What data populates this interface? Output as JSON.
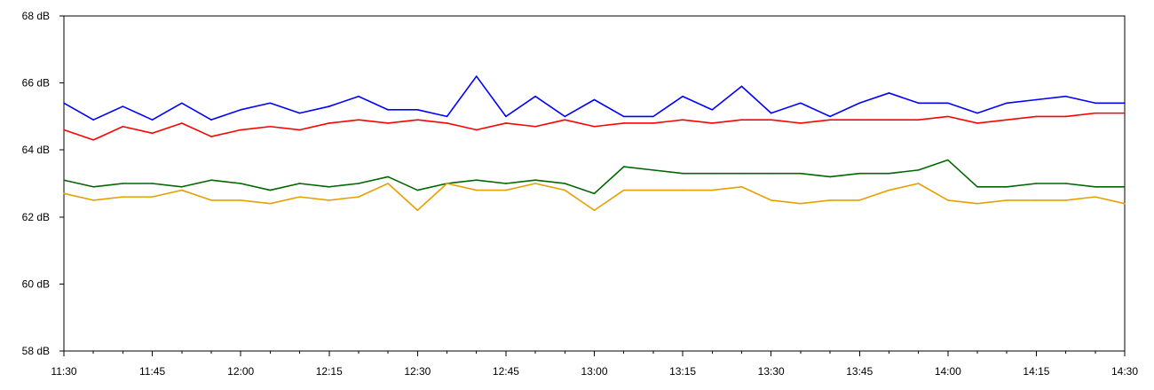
{
  "chart_data": {
    "type": "line",
    "title": "",
    "xlabel": "",
    "ylabel": "",
    "y_unit": "dB",
    "xlim": [
      "11:30",
      "14:30"
    ],
    "ylim": [
      58,
      68
    ],
    "grid": false,
    "legend": "none",
    "x_ticks": [
      "11:30",
      "11:45",
      "12:00",
      "12:15",
      "12:30",
      "12:45",
      "13:00",
      "13:15",
      "13:30",
      "13:45",
      "14:00",
      "14:15",
      "14:30"
    ],
    "y_ticks": [
      {
        "value": 58,
        "label": "58 dB"
      },
      {
        "value": 60,
        "label": "60 dB"
      },
      {
        "value": 62,
        "label": "62 dB"
      },
      {
        "value": 64,
        "label": "64 dB"
      },
      {
        "value": 66,
        "label": "66 dB"
      },
      {
        "value": 68,
        "label": "68 dB"
      }
    ],
    "x": [
      "11:30",
      "11:35",
      "11:40",
      "11:45",
      "11:50",
      "11:55",
      "12:00",
      "12:05",
      "12:10",
      "12:15",
      "12:20",
      "12:25",
      "12:30",
      "12:35",
      "12:40",
      "12:45",
      "12:50",
      "12:55",
      "13:00",
      "13:05",
      "13:10",
      "13:15",
      "13:20",
      "13:25",
      "13:30",
      "13:35",
      "13:40",
      "13:45",
      "13:50",
      "13:55",
      "14:00",
      "14:05",
      "14:10",
      "14:15",
      "14:20",
      "14:25",
      "14:30"
    ],
    "series": [
      {
        "color": "#0000ff",
        "values": [
          65.4,
          64.9,
          65.3,
          64.9,
          65.4,
          64.9,
          65.2,
          65.4,
          65.1,
          65.3,
          65.6,
          65.2,
          65.2,
          65.0,
          66.2,
          65.0,
          65.6,
          65.0,
          65.5,
          65.0,
          65.0,
          65.6,
          65.2,
          65.9,
          65.1,
          65.4,
          65.0,
          65.4,
          65.7,
          65.4,
          65.4,
          65.1,
          65.4,
          65.5,
          65.6,
          65.4,
          65.4
        ]
      },
      {
        "color": "#ff0000",
        "values": [
          64.6,
          64.3,
          64.7,
          64.5,
          64.8,
          64.4,
          64.6,
          64.7,
          64.6,
          64.8,
          64.9,
          64.8,
          64.9,
          64.8,
          64.6,
          64.8,
          64.7,
          64.9,
          64.7,
          64.8,
          64.8,
          64.9,
          64.8,
          64.9,
          64.9,
          64.8,
          64.9,
          64.9,
          64.9,
          64.9,
          65.0,
          64.8,
          64.9,
          65.0,
          65.0,
          65.1,
          65.1
        ]
      },
      {
        "color": "#006600",
        "values": [
          63.1,
          62.9,
          63.0,
          63.0,
          62.9,
          63.1,
          63.0,
          62.8,
          63.0,
          62.9,
          63.0,
          63.2,
          62.8,
          63.0,
          63.1,
          63.0,
          63.1,
          63.0,
          62.7,
          63.5,
          63.4,
          63.3,
          63.3,
          63.3,
          63.3,
          63.3,
          63.2,
          63.3,
          63.3,
          63.4,
          63.7,
          62.9,
          62.9,
          63.0,
          63.0,
          62.9,
          62.9
        ]
      },
      {
        "color": "#e6a000",
        "values": [
          62.7,
          62.5,
          62.6,
          62.6,
          62.8,
          62.5,
          62.5,
          62.4,
          62.6,
          62.5,
          62.6,
          63.0,
          62.2,
          63.0,
          62.8,
          62.8,
          63.0,
          62.8,
          62.2,
          62.8,
          62.8,
          62.8,
          62.8,
          62.9,
          62.5,
          62.4,
          62.5,
          62.5,
          62.8,
          63.0,
          62.5,
          62.4,
          62.5,
          62.5,
          62.5,
          62.6,
          62.4
        ]
      }
    ]
  }
}
